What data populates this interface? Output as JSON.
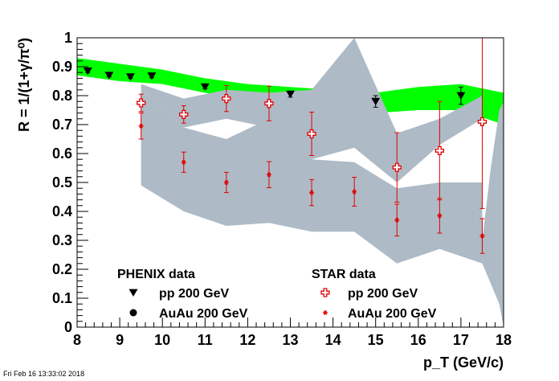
{
  "timestamp": "Fri Feb 16 13:33:02 2018",
  "chart_data": {
    "type": "scatter",
    "title": "",
    "xlabel": "p_T (GeV/c)",
    "ylabel": "R = 1/(1+γ/π⁰)",
    "xlim": [
      8,
      18
    ],
    "ylim": [
      0,
      1
    ],
    "x_ticks": [
      8,
      9,
      10,
      11,
      12,
      13,
      14,
      15,
      16,
      17,
      18
    ],
    "y_ticks": [
      0,
      0.1,
      0.2,
      0.3,
      0.4,
      0.5,
      0.6,
      0.7,
      0.8,
      0.9,
      1
    ],
    "grid": false,
    "legend": {
      "phenix_header": "PHENIX data",
      "star_header": "STAR data",
      "entries": [
        {
          "group": "PHENIX",
          "label": "pp 200 GeV",
          "marker": "triangle-down",
          "color": "#000000"
        },
        {
          "group": "PHENIX",
          "label": "AuAu 200 GeV",
          "marker": "circle",
          "color": "#000000"
        },
        {
          "group": "STAR",
          "label": "pp 200 GeV",
          "marker": "open-cross",
          "color": "#e00000"
        },
        {
          "group": "STAR",
          "label": "AuAu 200 GeV",
          "marker": "star",
          "color": "#e00000"
        }
      ]
    },
    "bands": [
      {
        "id": "pp-band",
        "color": "#00ff00",
        "x": [
          8,
          9,
          10,
          11,
          12,
          13,
          14,
          15,
          16,
          17,
          18
        ],
        "lower": [
          0.87,
          0.85,
          0.84,
          0.81,
          0.78,
          0.77,
          0.76,
          0.74,
          0.75,
          0.75,
          0.7
        ],
        "upper": [
          0.93,
          0.91,
          0.89,
          0.86,
          0.84,
          0.83,
          0.82,
          0.81,
          0.83,
          0.84,
          0.81
        ]
      },
      {
        "id": "auau-band-lower",
        "color": "#aebbc6",
        "x": [
          9.5,
          10.5,
          11.5,
          12.5,
          13.5,
          14.5,
          15.5,
          16.5,
          17.5
        ],
        "lower": [
          0.49,
          0.4,
          0.35,
          0.36,
          0.33,
          0.33,
          0.22,
          0.27,
          0.22
        ],
        "upper": [
          0.82,
          0.69,
          0.65,
          0.72,
          0.58,
          0.57,
          0.48,
          0.5,
          0.5
        ]
      },
      {
        "id": "auau-band-upper",
        "color": "#aebbc6",
        "x": [
          9.5,
          10.5,
          11.5,
          12.5,
          13.5,
          14.5,
          15.5,
          16.5,
          17.5
        ],
        "lower": [
          0.82,
          0.69,
          0.72,
          0.69,
          0.58,
          0.62,
          0.5,
          0.63,
          0.72
        ],
        "upper": [
          0.84,
          0.79,
          0.82,
          0.81,
          0.82,
          1.0,
          0.67,
          0.72,
          0.8
        ]
      }
    ],
    "band_tail": {
      "x": [
        17.5,
        17.7,
        17.9,
        18.0
      ],
      "lower": [
        0.22,
        0.15,
        0.08,
        0.0
      ],
      "upper": [
        0.3,
        0.55,
        0.75,
        0.78
      ]
    },
    "series": [
      {
        "name": "PHENIX pp 200 GeV",
        "marker": "triangle-down",
        "color": "#000000",
        "x": [
          8.25,
          8.75,
          9.25,
          9.75,
          11.0,
          13.0,
          15.0,
          17.0
        ],
        "y": [
          0.885,
          0.87,
          0.865,
          0.868,
          0.83,
          0.805,
          0.78,
          0.8
        ],
        "err": [
          0.005,
          0.005,
          0.005,
          0.006,
          0.006,
          0.01,
          0.02,
          0.03
        ]
      },
      {
        "name": "STAR pp 200 GeV",
        "marker": "open-cross",
        "color": "#e00000",
        "x": [
          9.5,
          10.5,
          11.5,
          12.5,
          13.5,
          15.5,
          16.5,
          17.5
        ],
        "y": [
          0.775,
          0.735,
          0.79,
          0.773,
          0.668,
          0.552,
          0.61,
          0.71
        ],
        "err": [
          0.03,
          0.03,
          0.045,
          0.06,
          0.075,
          0.12,
          0.17,
          0.3
        ]
      },
      {
        "name": "STAR AuAu 200 GeV",
        "marker": "star",
        "color": "#e00000",
        "x": [
          9.5,
          10.5,
          11.5,
          12.5,
          13.5,
          14.5,
          15.5,
          16.5,
          17.5
        ],
        "y": [
          0.695,
          0.57,
          0.5,
          0.527,
          0.465,
          0.468,
          0.37,
          0.385,
          0.315
        ],
        "err": [
          0.045,
          0.035,
          0.035,
          0.045,
          0.045,
          0.05,
          0.055,
          0.06,
          0.06
        ]
      }
    ],
    "star_pp_err_upper_overrides": {
      "17.5": 1.0
    }
  }
}
